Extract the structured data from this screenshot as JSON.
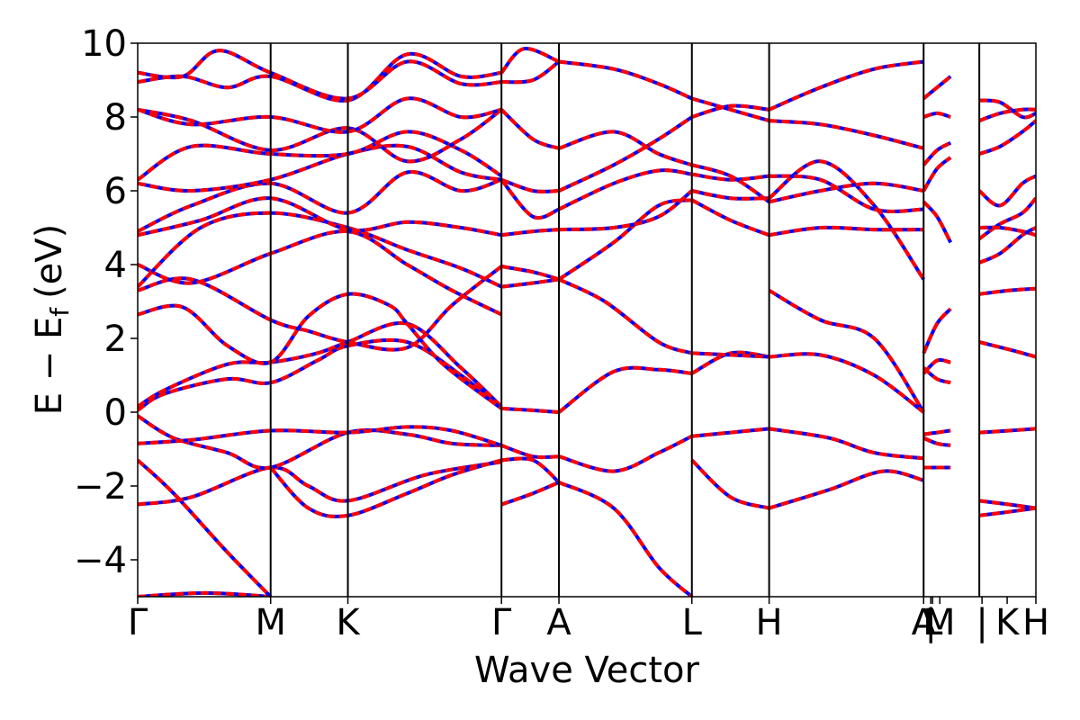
{
  "chart_data": {
    "type": "line",
    "title": "",
    "xlabel": "Wave Vector",
    "ylabel": "E − E",
    "ylabel_subscript": "f",
    "ylabel_unit": "(eV)",
    "ylim": [
      -5,
      10
    ],
    "yticks": [
      -4,
      -2,
      0,
      2,
      4,
      6,
      8,
      10
    ],
    "ytick_labels": [
      "−4",
      "−2",
      "0",
      "2",
      "4",
      "6",
      "8",
      "10"
    ],
    "xlim": [
      0,
      1
    ],
    "kpoints": [
      {
        "label": "Γ",
        "x": 0.0
      },
      {
        "label": "M",
        "x": 0.148
      },
      {
        "label": "K",
        "x": 0.234
      },
      {
        "label": "Γ",
        "x": 0.405
      },
      {
        "label": "A",
        "x": 0.469
      },
      {
        "label": "L",
        "x": 0.617
      },
      {
        "label": "H",
        "x": 0.703
      },
      {
        "label": "A",
        "x": 0.875
      },
      {
        "label": "|",
        "x": 0.883
      },
      {
        "label": "L",
        "x": 0.885
      },
      {
        "label": "M",
        "x": 0.893
      },
      {
        "label": "|",
        "x": 0.94
      },
      {
        "label": "K",
        "x": 0.968
      },
      {
        "label": "H",
        "x": 1.0
      }
    ],
    "vertical_lines": [
      0.148,
      0.234,
      0.405,
      0.469,
      0.617,
      0.703,
      0.875,
      0.937
    ],
    "series_style": [
      {
        "color": "#ff0000",
        "style": "solid"
      },
      {
        "color": "#0000ff",
        "style": "dotted"
      }
    ],
    "bands": [
      {
        "x": [
          0.0,
          0.075,
          0.148
        ],
        "y": [
          -5.0,
          -4.9,
          -5.0
        ]
      },
      {
        "x": [
          0.0,
          0.04,
          0.1,
          0.148
        ],
        "y": [
          -1.3,
          -2.2,
          -3.8,
          -5.0
        ]
      },
      {
        "x": [
          0.0,
          0.06,
          0.148,
          0.19,
          0.234,
          0.32,
          0.405
        ],
        "y": [
          -2.5,
          -2.3,
          -1.5,
          -2.0,
          -2.4,
          -1.7,
          -1.35
        ]
      },
      {
        "x": [
          0.148,
          0.19,
          0.234,
          0.3,
          0.35,
          0.405
        ],
        "y": [
          -1.5,
          -2.6,
          -2.8,
          -2.2,
          -1.7,
          -1.3
        ]
      },
      {
        "x": [
          0.0,
          0.04,
          0.1,
          0.148,
          0.234,
          0.3,
          0.35,
          0.405
        ],
        "y": [
          -0.1,
          -0.7,
          -1.1,
          -1.5,
          -0.55,
          -0.6,
          -0.85,
          -0.9
        ]
      },
      {
        "x": [
          0.0,
          0.06,
          0.148,
          0.234,
          0.3,
          0.35,
          0.405
        ],
        "y": [
          -0.85,
          -0.75,
          -0.5,
          -0.55,
          -0.4,
          -0.5,
          -0.9
        ]
      },
      {
        "x": [
          0.0,
          0.03,
          0.1,
          0.148,
          0.2,
          0.234,
          0.3,
          0.36,
          0.405
        ],
        "y": [
          0.05,
          0.5,
          0.9,
          0.8,
          1.4,
          1.8,
          1.9,
          1.0,
          0.1
        ]
      },
      {
        "x": [
          0.0,
          0.03,
          0.1,
          0.148,
          0.2,
          0.234,
          0.3,
          0.36,
          0.405
        ],
        "y": [
          0.15,
          0.6,
          1.3,
          1.35,
          1.6,
          1.9,
          2.4,
          1.2,
          0.15
        ]
      },
      {
        "x": [
          0.0,
          0.05,
          0.1,
          0.148,
          0.19,
          0.234,
          0.28,
          0.3,
          0.34,
          0.405
        ],
        "y": [
          2.65,
          2.85,
          1.8,
          1.35,
          2.6,
          3.2,
          2.9,
          2.4,
          1.3,
          0.1
        ]
      },
      {
        "x": [
          0.0,
          0.06,
          0.148,
          0.19,
          0.234,
          0.3,
          0.35,
          0.405
        ],
        "y": [
          3.3,
          3.6,
          2.5,
          2.2,
          1.9,
          1.75,
          2.9,
          3.95
        ]
      },
      {
        "x": [
          0.0,
          0.06,
          0.148,
          0.234,
          0.3,
          0.35,
          0.405
        ],
        "y": [
          4.0,
          3.5,
          4.3,
          4.9,
          4.0,
          3.3,
          2.65
        ]
      },
      {
        "x": [
          0.0,
          0.07,
          0.148,
          0.234,
          0.3,
          0.36,
          0.405
        ],
        "y": [
          3.4,
          5.0,
          5.4,
          5.0,
          4.4,
          3.9,
          3.4
        ]
      },
      {
        "x": [
          0.0,
          0.07,
          0.148,
          0.234,
          0.3,
          0.36,
          0.405
        ],
        "y": [
          4.8,
          5.2,
          5.8,
          4.95,
          5.15,
          5.0,
          4.8
        ]
      },
      {
        "x": [
          0.0,
          0.06,
          0.148,
          0.234,
          0.3,
          0.36,
          0.405
        ],
        "y": [
          4.9,
          5.6,
          6.2,
          5.4,
          6.5,
          6.0,
          6.3
        ]
      },
      {
        "x": [
          0.0,
          0.06,
          0.148,
          0.234,
          0.3,
          0.36,
          0.405
        ],
        "y": [
          6.2,
          6.0,
          6.3,
          7.0,
          7.2,
          6.5,
          6.3
        ]
      },
      {
        "x": [
          0.0,
          0.06,
          0.148,
          0.234,
          0.3,
          0.36,
          0.405
        ],
        "y": [
          6.3,
          7.2,
          7.0,
          7.0,
          7.6,
          7.1,
          6.4
        ]
      },
      {
        "x": [
          0.0,
          0.06,
          0.148,
          0.234,
          0.3,
          0.36,
          0.405
        ],
        "y": [
          8.2,
          7.9,
          7.1,
          7.7,
          6.8,
          7.4,
          8.2
        ]
      },
      {
        "x": [
          0.0,
          0.06,
          0.148,
          0.234,
          0.3,
          0.36,
          0.405
        ],
        "y": [
          8.2,
          7.8,
          8.0,
          7.6,
          8.5,
          8.0,
          8.2
        ]
      },
      {
        "x": [
          0.0,
          0.05,
          0.1,
          0.148,
          0.234,
          0.3,
          0.36,
          0.405
        ],
        "y": [
          8.95,
          9.1,
          8.8,
          9.1,
          8.45,
          9.7,
          9.1,
          9.2
        ]
      },
      {
        "x": [
          0.0,
          0.05,
          0.09,
          0.148,
          0.234,
          0.3,
          0.36,
          0.405
        ],
        "y": [
          9.2,
          9.1,
          9.8,
          9.2,
          8.5,
          9.5,
          8.9,
          8.95
        ]
      },
      {
        "x": [
          0.405,
          0.44,
          0.469
        ],
        "y": [
          0.1,
          0.05,
          0.0
        ]
      },
      {
        "x": [
          0.405,
          0.44,
          0.469
        ],
        "y": [
          -0.9,
          -1.2,
          -1.2
        ]
      },
      {
        "x": [
          0.405,
          0.44,
          0.469
        ],
        "y": [
          -1.3,
          -1.3,
          -1.9
        ]
      },
      {
        "x": [
          0.405,
          0.44,
          0.469
        ],
        "y": [
          -2.5,
          -2.2,
          -1.9
        ]
      },
      {
        "x": [
          0.405,
          0.44,
          0.469
        ],
        "y": [
          3.4,
          3.5,
          3.6
        ]
      },
      {
        "x": [
          0.405,
          0.44,
          0.469
        ],
        "y": [
          3.95,
          3.8,
          3.6
        ]
      },
      {
        "x": [
          0.405,
          0.44,
          0.469
        ],
        "y": [
          4.8,
          4.9,
          4.95
        ]
      },
      {
        "x": [
          0.405,
          0.44,
          0.469
        ],
        "y": [
          6.3,
          6.0,
          6.0
        ]
      },
      {
        "x": [
          0.405,
          0.44,
          0.469
        ],
        "y": [
          6.3,
          5.3,
          5.5
        ]
      },
      {
        "x": [
          0.405,
          0.44,
          0.469
        ],
        "y": [
          8.2,
          7.4,
          7.15
        ]
      },
      {
        "x": [
          0.405,
          0.44,
          0.469
        ],
        "y": [
          8.95,
          9.0,
          9.5
        ]
      },
      {
        "x": [
          0.405,
          0.43,
          0.469
        ],
        "y": [
          9.2,
          9.85,
          9.5
        ]
      },
      {
        "x": [
          0.469,
          0.53,
          0.58,
          0.617
        ],
        "y": [
          0.0,
          1.1,
          1.15,
          1.05
        ]
      },
      {
        "x": [
          0.469,
          0.53,
          0.58,
          0.617
        ],
        "y": [
          -1.2,
          -1.6,
          -1.1,
          -0.65
        ]
      },
      {
        "x": [
          0.469,
          0.53,
          0.58,
          0.617
        ],
        "y": [
          -1.9,
          -2.6,
          -4.2,
          -5.0
        ]
      },
      {
        "x": [
          0.469,
          0.52,
          0.58,
          0.617
        ],
        "y": [
          3.6,
          3.0,
          1.9,
          1.6
        ]
      },
      {
        "x": [
          0.469,
          0.53,
          0.58,
          0.617
        ],
        "y": [
          3.6,
          4.6,
          5.6,
          5.75
        ]
      },
      {
        "x": [
          0.469,
          0.53,
          0.58,
          0.617
        ],
        "y": [
          4.95,
          5.0,
          5.3,
          6.0
        ]
      },
      {
        "x": [
          0.469,
          0.53,
          0.58,
          0.617
        ],
        "y": [
          5.5,
          6.2,
          6.55,
          6.45
        ]
      },
      {
        "x": [
          0.469,
          0.53,
          0.58,
          0.617
        ],
        "y": [
          6.0,
          6.7,
          7.4,
          8.0
        ]
      },
      {
        "x": [
          0.469,
          0.53,
          0.58,
          0.617
        ],
        "y": [
          7.15,
          7.6,
          7.0,
          6.7
        ]
      },
      {
        "x": [
          0.469,
          0.53,
          0.58,
          0.617
        ],
        "y": [
          9.5,
          9.3,
          8.9,
          8.5
        ]
      },
      {
        "x": [
          0.617,
          0.66,
          0.703
        ],
        "y": [
          1.05,
          1.6,
          1.5
        ]
      },
      {
        "x": [
          0.617,
          0.66,
          0.703
        ],
        "y": [
          1.6,
          1.55,
          1.5
        ]
      },
      {
        "x": [
          0.617,
          0.66,
          0.703
        ],
        "y": [
          -0.65,
          -0.55,
          -0.45
        ]
      },
      {
        "x": [
          0.617,
          0.66,
          0.703
        ],
        "y": [
          -1.3,
          -2.3,
          -2.6
        ]
      },
      {
        "x": [
          0.617,
          0.66,
          0.703
        ],
        "y": [
          5.75,
          5.2,
          4.8
        ]
      },
      {
        "x": [
          0.617,
          0.66,
          0.703
        ],
        "y": [
          6.0,
          5.8,
          5.8
        ]
      },
      {
        "x": [
          0.617,
          0.66,
          0.703
        ],
        "y": [
          6.45,
          6.3,
          6.4
        ]
      },
      {
        "x": [
          0.617,
          0.66,
          0.703
        ],
        "y": [
          6.7,
          6.4,
          5.7
        ]
      },
      {
        "x": [
          0.617,
          0.66,
          0.703
        ],
        "y": [
          8.0,
          8.3,
          8.2
        ]
      },
      {
        "x": [
          0.617,
          0.66,
          0.703
        ],
        "y": [
          8.5,
          8.2,
          7.9
        ]
      },
      {
        "x": [
          0.703,
          0.76,
          0.82,
          0.875
        ],
        "y": [
          3.3,
          2.5,
          2.0,
          0.0
        ]
      },
      {
        "x": [
          0.703,
          0.76,
          0.82,
          0.875
        ],
        "y": [
          1.5,
          1.55,
          1.0,
          0.0
        ]
      },
      {
        "x": [
          0.703,
          0.77,
          0.82,
          0.875
        ],
        "y": [
          -0.45,
          -0.7,
          -1.1,
          -1.25
        ]
      },
      {
        "x": [
          0.703,
          0.77,
          0.83,
          0.875
        ],
        "y": [
          -2.6,
          -2.1,
          -1.6,
          -1.85
        ]
      },
      {
        "x": [
          0.703,
          0.76,
          0.82,
          0.875
        ],
        "y": [
          4.8,
          5.0,
          4.95,
          4.95
        ]
      },
      {
        "x": [
          0.703,
          0.76,
          0.82,
          0.875
        ],
        "y": [
          5.8,
          6.8,
          5.6,
          3.6
        ]
      },
      {
        "x": [
          0.703,
          0.76,
          0.82,
          0.875
        ],
        "y": [
          6.4,
          6.3,
          5.5,
          5.5
        ]
      },
      {
        "x": [
          0.703,
          0.76,
          0.82,
          0.875
        ],
        "y": [
          5.7,
          6.0,
          6.2,
          6.0
        ]
      },
      {
        "x": [
          0.703,
          0.76,
          0.82,
          0.875
        ],
        "y": [
          7.9,
          7.8,
          7.5,
          7.15
        ]
      },
      {
        "x": [
          0.703,
          0.76,
          0.82,
          0.875
        ],
        "y": [
          8.2,
          8.8,
          9.3,
          9.5
        ]
      },
      {
        "x": [
          0.875,
          0.89,
          0.905
        ],
        "y": [
          8.5,
          8.8,
          9.1
        ]
      },
      {
        "x": [
          0.875,
          0.89,
          0.905
        ],
        "y": [
          8.0,
          8.1,
          8.0
        ]
      },
      {
        "x": [
          0.875,
          0.89,
          0.905
        ],
        "y": [
          6.7,
          7.1,
          7.3
        ]
      },
      {
        "x": [
          0.875,
          0.89,
          0.905
        ],
        "y": [
          6.0,
          6.6,
          6.9
        ]
      },
      {
        "x": [
          0.875,
          0.89,
          0.905
        ],
        "y": [
          5.7,
          5.3,
          4.6
        ]
      },
      {
        "x": [
          0.875,
          0.89,
          0.905
        ],
        "y": [
          1.6,
          2.4,
          2.8
        ]
      },
      {
        "x": [
          0.875,
          0.89,
          0.905
        ],
        "y": [
          1.05,
          1.4,
          1.35
        ]
      },
      {
        "x": [
          0.875,
          0.89,
          0.905
        ],
        "y": [
          1.2,
          0.9,
          0.8
        ]
      },
      {
        "x": [
          0.875,
          0.89,
          0.905
        ],
        "y": [
          -0.6,
          -0.55,
          -0.5
        ]
      },
      {
        "x": [
          0.875,
          0.89,
          0.905
        ],
        "y": [
          -0.7,
          -0.85,
          -0.9
        ]
      },
      {
        "x": [
          0.875,
          0.905
        ],
        "y": [
          -1.5,
          -1.5
        ]
      },
      {
        "x": [
          0.937,
          0.96,
          0.985,
          1.0
        ],
        "y": [
          8.45,
          8.4,
          8.0,
          8.1
        ]
      },
      {
        "x": [
          0.937,
          0.96,
          0.985,
          1.0
        ],
        "y": [
          7.9,
          8.1,
          8.2,
          8.2
        ]
      },
      {
        "x": [
          0.937,
          0.96,
          0.985,
          1.0
        ],
        "y": [
          7.0,
          7.2,
          7.6,
          7.9
        ]
      },
      {
        "x": [
          0.937,
          0.96,
          0.985,
          1.0
        ],
        "y": [
          6.0,
          5.6,
          6.2,
          6.4
        ]
      },
      {
        "x": [
          0.937,
          0.96,
          0.985,
          1.0
        ],
        "y": [
          4.7,
          5.1,
          5.4,
          5.8
        ]
      },
      {
        "x": [
          0.937,
          0.96,
          0.985,
          1.0
        ],
        "y": [
          4.05,
          4.3,
          4.8,
          5.0
        ]
      },
      {
        "x": [
          0.937,
          0.96,
          0.985,
          1.0
        ],
        "y": [
          5.0,
          5.0,
          4.9,
          4.8
        ]
      },
      {
        "x": [
          0.937,
          0.97,
          1.0
        ],
        "y": [
          3.2,
          3.3,
          3.35
        ]
      },
      {
        "x": [
          0.937,
          0.97,
          1.0
        ],
        "y": [
          1.9,
          1.7,
          1.5
        ]
      },
      {
        "x": [
          0.937,
          0.97,
          1.0
        ],
        "y": [
          -0.55,
          -0.5,
          -0.45
        ]
      },
      {
        "x": [
          0.937,
          0.97,
          1.0
        ],
        "y": [
          -2.4,
          -2.5,
          -2.6
        ]
      },
      {
        "x": [
          0.937,
          0.97,
          1.0
        ],
        "y": [
          -2.8,
          -2.7,
          -2.6
        ]
      }
    ]
  }
}
